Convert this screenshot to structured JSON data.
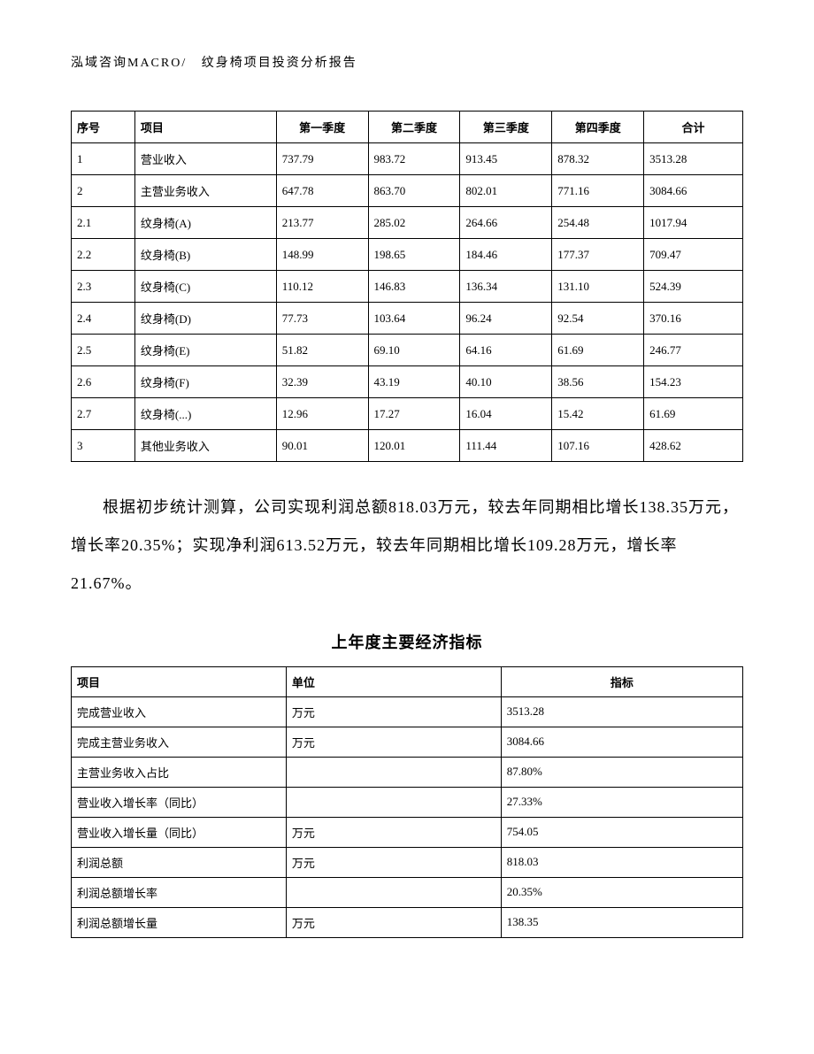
{
  "header": {
    "company": "泓域咨询MACRO/",
    "title": "纹身椅项目投资分析报告"
  },
  "table1": {
    "headers": {
      "seq": "序号",
      "item": "项目",
      "q1": "第一季度",
      "q2": "第二季度",
      "q3": "第三季度",
      "q4": "第四季度",
      "total": "合计"
    },
    "rows": [
      {
        "seq": "1",
        "item": "营业收入",
        "q1": "737.79",
        "q2": "983.72",
        "q3": "913.45",
        "q4": "878.32",
        "total": "3513.28"
      },
      {
        "seq": "2",
        "item": "主营业务收入",
        "q1": "647.78",
        "q2": "863.70",
        "q3": "802.01",
        "q4": "771.16",
        "total": "3084.66"
      },
      {
        "seq": "2.1",
        "item": "纹身椅(A)",
        "q1": "213.77",
        "q2": "285.02",
        "q3": "264.66",
        "q4": "254.48",
        "total": "1017.94"
      },
      {
        "seq": "2.2",
        "item": "纹身椅(B)",
        "q1": "148.99",
        "q2": "198.65",
        "q3": "184.46",
        "q4": "177.37",
        "total": "709.47"
      },
      {
        "seq": "2.3",
        "item": "纹身椅(C)",
        "q1": "110.12",
        "q2": "146.83",
        "q3": "136.34",
        "q4": "131.10",
        "total": "524.39"
      },
      {
        "seq": "2.4",
        "item": "纹身椅(D)",
        "q1": "77.73",
        "q2": "103.64",
        "q3": "96.24",
        "q4": "92.54",
        "total": "370.16"
      },
      {
        "seq": "2.5",
        "item": "纹身椅(E)",
        "q1": "51.82",
        "q2": "69.10",
        "q3": "64.16",
        "q4": "61.69",
        "total": "246.77"
      },
      {
        "seq": "2.6",
        "item": "纹身椅(F)",
        "q1": "32.39",
        "q2": "43.19",
        "q3": "40.10",
        "q4": "38.56",
        "total": "154.23"
      },
      {
        "seq": "2.7",
        "item": "纹身椅(...)",
        "q1": "12.96",
        "q2": "17.27",
        "q3": "16.04",
        "q4": "15.42",
        "total": "61.69"
      },
      {
        "seq": "3",
        "item": "其他业务收入",
        "q1": "90.01",
        "q2": "120.01",
        "q3": "111.44",
        "q4": "107.16",
        "total": "428.62"
      }
    ]
  },
  "paragraph": "根据初步统计测算，公司实现利润总额818.03万元，较去年同期相比增长138.35万元，增长率20.35%；实现净利润613.52万元，较去年同期相比增长109.28万元，增长率21.67%。",
  "section_title": "上年度主要经济指标",
  "table2": {
    "headers": {
      "item": "项目",
      "unit": "单位",
      "value": "指标"
    },
    "rows": [
      {
        "item": "完成营业收入",
        "unit": "万元",
        "value": "3513.28"
      },
      {
        "item": "完成主营业务收入",
        "unit": "万元",
        "value": "3084.66"
      },
      {
        "item": "主营业务收入占比",
        "unit": "",
        "value": "87.80%"
      },
      {
        "item": "营业收入增长率（同比）",
        "unit": "",
        "value": "27.33%"
      },
      {
        "item": "营业收入增长量（同比）",
        "unit": "万元",
        "value": "754.05"
      },
      {
        "item": "利润总额",
        "unit": "万元",
        "value": "818.03"
      },
      {
        "item": "利润总额增长率",
        "unit": "",
        "value": "20.35%"
      },
      {
        "item": "利润总额增长量",
        "unit": "万元",
        "value": "138.35"
      }
    ]
  }
}
